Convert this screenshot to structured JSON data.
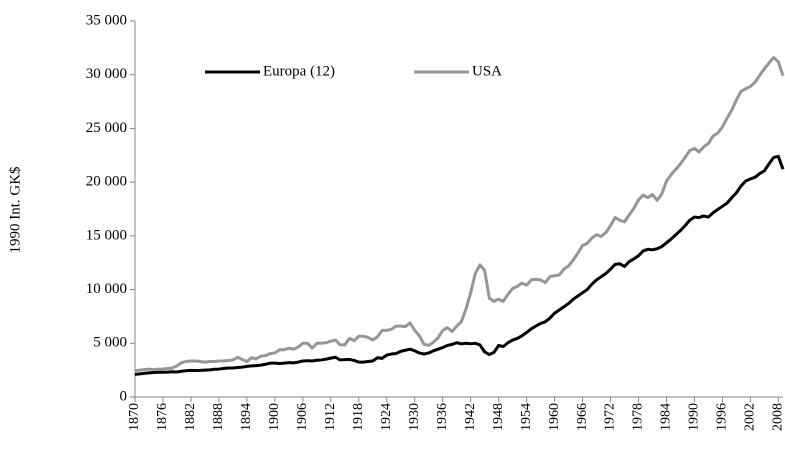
{
  "chart_data": {
    "type": "line",
    "ylabel": "1990 Int. GK$",
    "x": [
      1870,
      1871,
      1872,
      1873,
      1874,
      1875,
      1876,
      1877,
      1878,
      1879,
      1880,
      1881,
      1882,
      1883,
      1884,
      1885,
      1886,
      1887,
      1888,
      1889,
      1890,
      1891,
      1892,
      1893,
      1894,
      1895,
      1896,
      1897,
      1898,
      1899,
      1900,
      1901,
      1902,
      1903,
      1904,
      1905,
      1906,
      1907,
      1908,
      1909,
      1910,
      1911,
      1912,
      1913,
      1914,
      1915,
      1916,
      1917,
      1918,
      1919,
      1920,
      1921,
      1922,
      1923,
      1924,
      1925,
      1926,
      1927,
      1928,
      1929,
      1930,
      1931,
      1932,
      1933,
      1934,
      1935,
      1936,
      1937,
      1938,
      1939,
      1940,
      1941,
      1942,
      1943,
      1944,
      1945,
      1946,
      1947,
      1948,
      1949,
      1950,
      1951,
      1952,
      1953,
      1954,
      1955,
      1956,
      1957,
      1958,
      1959,
      1960,
      1961,
      1962,
      1963,
      1964,
      1965,
      1966,
      1967,
      1968,
      1969,
      1970,
      1971,
      1972,
      1973,
      1974,
      1975,
      1976,
      1977,
      1978,
      1979,
      1980,
      1981,
      1982,
      1983,
      1984,
      1985,
      1986,
      1987,
      1988,
      1989,
      1990,
      1991,
      1992,
      1993,
      1994,
      1995,
      1996,
      1997,
      1998,
      1999,
      2000,
      2001,
      2002,
      2003,
      2004,
      2005,
      2006,
      2007,
      2008,
      2009
    ],
    "series": [
      {
        "name": "Europa (12)",
        "color": "#000000",
        "values": [
          2100,
          2150,
          2200,
          2250,
          2280,
          2300,
          2300,
          2320,
          2350,
          2330,
          2400,
          2450,
          2480,
          2470,
          2480,
          2500,
          2520,
          2580,
          2600,
          2650,
          2700,
          2700,
          2750,
          2780,
          2850,
          2900,
          2920,
          2970,
          3050,
          3150,
          3150,
          3120,
          3150,
          3200,
          3180,
          3250,
          3350,
          3380,
          3350,
          3420,
          3450,
          3520,
          3620,
          3700,
          3450,
          3480,
          3500,
          3400,
          3250,
          3250,
          3300,
          3350,
          3650,
          3600,
          3900,
          4000,
          4050,
          4250,
          4350,
          4450,
          4300,
          4100,
          4000,
          4100,
          4300,
          4450,
          4600,
          4800,
          4900,
          5050,
          4950,
          5000,
          4950,
          5000,
          4850,
          4200,
          3950,
          4150,
          4800,
          4700,
          5050,
          5300,
          5450,
          5700,
          6000,
          6350,
          6600,
          6850,
          7000,
          7350,
          7800,
          8100,
          8400,
          8700,
          9100,
          9400,
          9700,
          10000,
          10500,
          10900,
          11200,
          11500,
          11900,
          12350,
          12400,
          12150,
          12600,
          12850,
          13150,
          13600,
          13750,
          13700,
          13800,
          14000,
          14350,
          14700,
          15100,
          15500,
          15950,
          16450,
          16750,
          16700,
          16850,
          16750,
          17150,
          17450,
          17750,
          18050,
          18550,
          19000,
          19650,
          20100,
          20300,
          20450,
          20800,
          21050,
          21700,
          22300,
          22400,
          21200
        ]
      },
      {
        "name": "USA",
        "color": "#969696",
        "values": [
          2450,
          2500,
          2550,
          2600,
          2550,
          2600,
          2600,
          2650,
          2700,
          2900,
          3200,
          3300,
          3350,
          3350,
          3300,
          3250,
          3300,
          3300,
          3350,
          3350,
          3400,
          3450,
          3700,
          3500,
          3300,
          3650,
          3550,
          3800,
          3850,
          4050,
          4100,
          4400,
          4400,
          4550,
          4450,
          4650,
          5000,
          5000,
          4550,
          5000,
          5000,
          5050,
          5200,
          5300,
          4850,
          4850,
          5450,
          5250,
          5650,
          5650,
          5550,
          5300,
          5600,
          6200,
          6200,
          6300,
          6600,
          6600,
          6550,
          6900,
          6200,
          5700,
          4900,
          4800,
          5100,
          5500,
          6200,
          6450,
          6100,
          6600,
          7000,
          8200,
          9700,
          11500,
          12300,
          11800,
          9200,
          8900,
          9100,
          8900,
          9550,
          10100,
          10300,
          10600,
          10400,
          10900,
          10950,
          10900,
          10650,
          11200,
          11300,
          11350,
          11900,
          12200,
          12750,
          13400,
          14100,
          14300,
          14800,
          15100,
          14950,
          15300,
          15950,
          16700,
          16450,
          16300,
          16950,
          17550,
          18350,
          18800,
          18550,
          18850,
          18300,
          18900,
          20100,
          20700,
          21200,
          21700,
          22300,
          22950,
          23150,
          22800,
          23300,
          23600,
          24300,
          24550,
          25150,
          25950,
          26700,
          27650,
          28450,
          28700,
          28900,
          29300,
          29950,
          30550,
          31100,
          31600,
          31200,
          29900
        ]
      }
    ],
    "xlim": [
      1870,
      2009
    ],
    "xticks": [
      1870,
      1876,
      1882,
      1888,
      1894,
      1900,
      1906,
      1912,
      1918,
      1924,
      1930,
      1936,
      1942,
      1948,
      1954,
      1960,
      1966,
      1972,
      1978,
      1984,
      1990,
      1996,
      2002,
      2008
    ],
    "ylim": [
      0,
      35000
    ],
    "yticks": [
      0,
      {
        "value": 5000,
        "label": "5 000"
      },
      {
        "value": 10000,
        "label": "10 000"
      },
      {
        "value": 15000,
        "label": "15 000"
      },
      {
        "value": 20000,
        "label": "20 000"
      },
      {
        "value": 25000,
        "label": "25 000"
      },
      {
        "value": 30000,
        "label": "30 000"
      },
      {
        "value": 35000,
        "label": "35 000"
      }
    ],
    "grid": false,
    "legend": "top"
  }
}
